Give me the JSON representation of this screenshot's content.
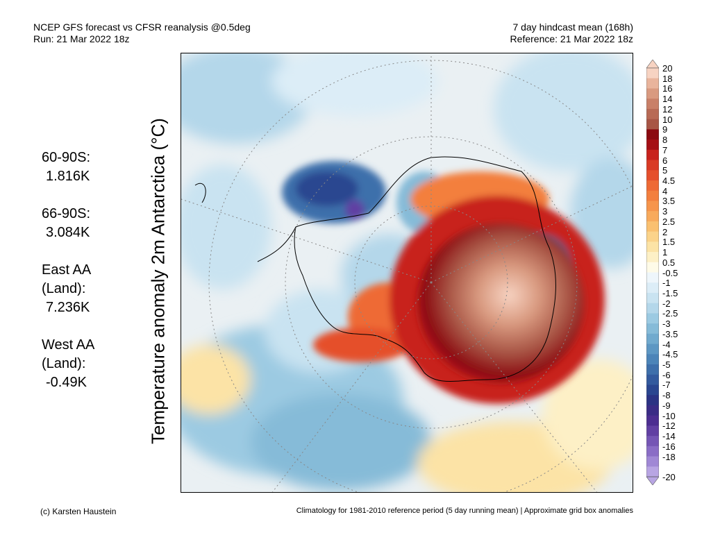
{
  "header": {
    "left_line1": "NCEP GFS forecast vs CFSR reanalysis @0.5deg",
    "left_line2": "Run: 21 Mar 2022 18z",
    "right_line1": "7 day hindcast mean (168h)",
    "right_line2": "Reference: 21 Mar 2022 18z"
  },
  "axis_label": "Temperature anomaly 2m Antarctica (°C)",
  "stats": [
    {
      "label": "60-90S:",
      "value": "1.816K"
    },
    {
      "label": "66-90S:",
      "value": "3.084K"
    },
    {
      "label": "East AA (Land):",
      "value": "7.236K"
    },
    {
      "label": "West AA (Land):",
      "value": "-0.49K"
    }
  ],
  "colorbar": {
    "levels": [
      "20",
      "18",
      "16",
      "14",
      "12",
      "10",
      "9",
      "8",
      "7",
      "6",
      "5",
      "4.5",
      "4",
      "3.5",
      "3",
      "2.5",
      "2",
      "1.5",
      "1",
      "0.5",
      "-0.5",
      "-1",
      "-1.5",
      "-2",
      "-2.5",
      "-3",
      "-3.5",
      "-4",
      "-4.5",
      "-5",
      "-6",
      "-7",
      "-8",
      "-9",
      "-10",
      "-12",
      "-14",
      "-16",
      "-18",
      "-20"
    ],
    "colors": [
      "#f7d3c2",
      "#e9b49c",
      "#d99a80",
      "#c98068",
      "#b86a55",
      "#a85545",
      "#8b0a10",
      "#a50f15",
      "#c8221d",
      "#d93a25",
      "#e54f2c",
      "#ee6a35",
      "#f37f3e",
      "#f6954c",
      "#f8aa5c",
      "#fac070",
      "#fbd38a",
      "#fce3a6",
      "#fdf0c6",
      "#fefbe8",
      "#eef6fb",
      "#dcedf7",
      "#c9e3f1",
      "#b4d7ea",
      "#9ccae2",
      "#86bbd8",
      "#71aace",
      "#5d97c3",
      "#4c84b8",
      "#3e6fab",
      "#335a9e",
      "#2a4690",
      "#2b3384",
      "#3a2c86",
      "#4c2e91",
      "#6140a3",
      "#7556b5",
      "#8a6dc6",
      "#a088d5",
      "#b8a5e3"
    ]
  },
  "footer": {
    "left": "(c) Karsten Haustein",
    "right": "Climatology for 1981-2010 reference period (5 day running mean) | Approximate grid box anomalies"
  }
}
